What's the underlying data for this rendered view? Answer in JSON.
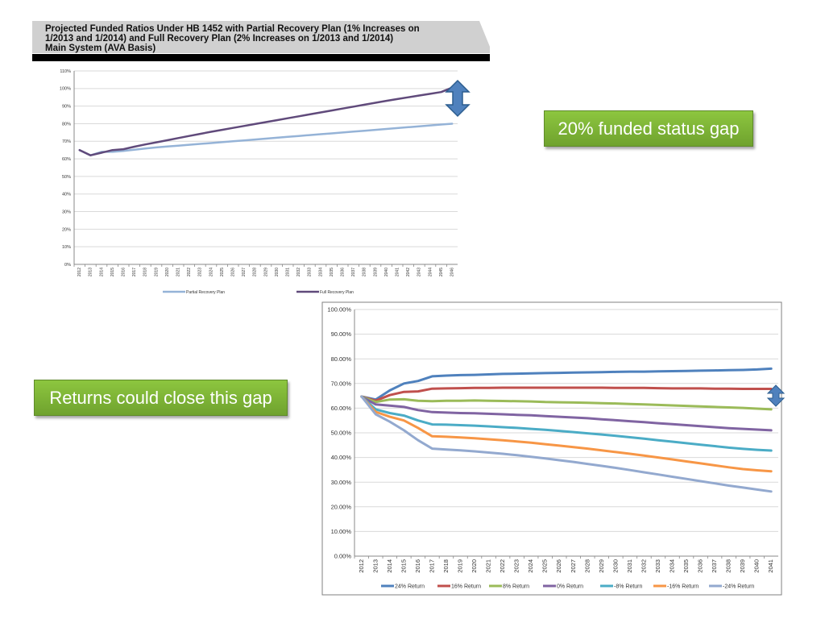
{
  "callouts": {
    "gap": "20% funded status gap",
    "close": "Returns could close this gap"
  },
  "colors": {
    "callout_green": "#7db53a",
    "arrow_blue": "#4f81bd",
    "partial_plan": "#95b3d7",
    "full_plan": "#604a7b"
  },
  "chart_data": [
    {
      "type": "line",
      "title": "Projected Funded Ratios Under HB 1452 with Partial Recovery Plan (1% Increases on 1/2013 and 1/2014) and Full Recovery Plan (2% Increases on 1/2013 and 1/2014) Main System (AVA Basis)",
      "title_lines": [
        "Projected Funded Ratios Under HB 1452 with Partial Recovery Plan (1% Increases on",
        "1/2013 and 1/2014) and Full Recovery Plan (2% Increases on 1/2013 and 1/2014)",
        "Main System (AVA Basis)"
      ],
      "ylim": [
        0,
        110
      ],
      "yticks": [
        "0%",
        "10%",
        "20%",
        "30%",
        "40%",
        "50%",
        "60%",
        "70%",
        "80%",
        "90%",
        "100%",
        "110%"
      ],
      "x": [
        "2012",
        "2013",
        "2014",
        "2015",
        "2016",
        "2017",
        "2018",
        "2019",
        "2020",
        "2021",
        "2022",
        "2023",
        "2024",
        "2025",
        "2026",
        "2027",
        "2028",
        "2029",
        "2030",
        "2031",
        "2032",
        "2033",
        "2034",
        "2035",
        "2036",
        "2037",
        "2038",
        "2039",
        "2040",
        "2041",
        "2042",
        "2043",
        "2044",
        "2045",
        "2046"
      ],
      "grid": true,
      "legend_position": "bottom",
      "series": [
        {
          "name": "Partial Recovery Plan",
          "color": "#95b3d7",
          "values": [
            65,
            62,
            64,
            64,
            64.5,
            65.2,
            65.9,
            66.5,
            67.0,
            67.5,
            68.0,
            68.5,
            69.0,
            69.5,
            70.0,
            70.5,
            71.0,
            71.5,
            72.0,
            72.5,
            73.0,
            73.5,
            74.0,
            74.5,
            75.0,
            75.5,
            76.0,
            76.5,
            77.0,
            77.5,
            78.0,
            78.5,
            79.0,
            79.5,
            80.0
          ]
        },
        {
          "name": "Full Recovery Plan",
          "color": "#604a7b",
          "values": [
            65,
            62,
            63.5,
            65,
            65.5,
            66.9,
            68.2,
            69.4,
            70.6,
            71.8,
            73.0,
            74.2,
            75.4,
            76.5,
            77.6,
            78.7,
            79.8,
            80.9,
            82.0,
            83.1,
            84.2,
            85.3,
            86.4,
            87.5,
            88.6,
            89.7,
            90.8,
            91.9,
            93.0,
            94.0,
            95.0,
            96.0,
            97.0,
            98.0,
            100.5
          ]
        }
      ]
    },
    {
      "type": "line",
      "ylim": [
        0,
        100
      ],
      "yticks": [
        "0.00%",
        "10.00%",
        "20.00%",
        "30.00%",
        "40.00%",
        "50.00%",
        "60.00%",
        "70.00%",
        "80.00%",
        "90.00%",
        "100.00%"
      ],
      "x": [
        "2012",
        "2013",
        "2014",
        "2015",
        "2016",
        "2017",
        "2018",
        "2019",
        "2020",
        "2021",
        "2022",
        "2023",
        "2024",
        "2025",
        "2026",
        "2027",
        "2028",
        "2029",
        "2030",
        "2031",
        "2032",
        "2033",
        "2034",
        "2035",
        "2036",
        "2037",
        "2038",
        "2039",
        "2040",
        "2041"
      ],
      "grid": true,
      "legend_position": "bottom",
      "series": [
        {
          "name": "24% Return",
          "color": "#4f81bd",
          "values": [
            64.7,
            63.5,
            67.2,
            70.0,
            71.0,
            72.9,
            73.2,
            73.4,
            73.5,
            73.7,
            73.9,
            74.0,
            74.1,
            74.2,
            74.3,
            74.4,
            74.5,
            74.6,
            74.7,
            74.8,
            74.8,
            74.9,
            75.0,
            75.1,
            75.2,
            75.3,
            75.4,
            75.5,
            75.7,
            76.0
          ]
        },
        {
          "name": "16% Return",
          "color": "#c0504d",
          "values": [
            64.7,
            63.0,
            65.3,
            66.6,
            66.8,
            67.9,
            68.0,
            68.1,
            68.2,
            68.2,
            68.3,
            68.3,
            68.3,
            68.3,
            68.3,
            68.3,
            68.3,
            68.3,
            68.2,
            68.2,
            68.2,
            68.1,
            68.0,
            68.0,
            68.0,
            67.9,
            67.9,
            67.8,
            67.8,
            67.8
          ]
        },
        {
          "name": "8% Return",
          "color": "#9bbb59",
          "values": [
            64.7,
            62.5,
            63.5,
            63.6,
            63.0,
            62.8,
            63.0,
            63.0,
            63.1,
            63.0,
            62.9,
            62.8,
            62.7,
            62.5,
            62.4,
            62.3,
            62.2,
            62.0,
            61.9,
            61.7,
            61.5,
            61.3,
            61.1,
            60.9,
            60.7,
            60.5,
            60.3,
            60.1,
            59.8,
            59.5
          ]
        },
        {
          "name": "0% Return",
          "color": "#8064a2",
          "values": [
            64.7,
            61.5,
            61.0,
            60.5,
            59.2,
            58.4,
            58.2,
            58.0,
            57.9,
            57.7,
            57.5,
            57.3,
            57.1,
            56.8,
            56.5,
            56.2,
            55.9,
            55.5,
            55.1,
            54.7,
            54.3,
            53.9,
            53.5,
            53.1,
            52.7,
            52.3,
            51.9,
            51.6,
            51.3,
            51.0
          ]
        },
        {
          "name": "-8% Return",
          "color": "#4bacc6",
          "values": [
            64.7,
            59.5,
            58.0,
            57.0,
            55.0,
            53.4,
            53.3,
            53.1,
            52.9,
            52.6,
            52.3,
            52.0,
            51.6,
            51.2,
            50.8,
            50.3,
            49.8,
            49.3,
            48.8,
            48.2,
            47.6,
            47.0,
            46.4,
            45.8,
            45.2,
            44.6,
            44.0,
            43.5,
            43.1,
            42.8
          ]
        },
        {
          "name": "-16% Return",
          "color": "#f79646",
          "values": [
            64.7,
            58.5,
            56.5,
            55.0,
            52.0,
            48.6,
            48.4,
            48.1,
            47.8,
            47.4,
            47.0,
            46.5,
            46.0,
            45.4,
            44.8,
            44.2,
            43.6,
            42.9,
            42.2,
            41.5,
            40.8,
            40.0,
            39.2,
            38.4,
            37.6,
            36.8,
            36.0,
            35.3,
            34.8,
            34.4
          ]
        },
        {
          "name": "-24% Return",
          "color": "#93a9cf",
          "values": [
            64.7,
            57.5,
            54.5,
            51.0,
            47.0,
            43.6,
            43.2,
            42.9,
            42.5,
            42.0,
            41.5,
            40.9,
            40.3,
            39.6,
            38.9,
            38.2,
            37.4,
            36.6,
            35.8,
            34.9,
            34.0,
            33.1,
            32.2,
            31.3,
            30.4,
            29.5,
            28.6,
            27.8,
            27.0,
            26.2
          ]
        }
      ]
    }
  ]
}
